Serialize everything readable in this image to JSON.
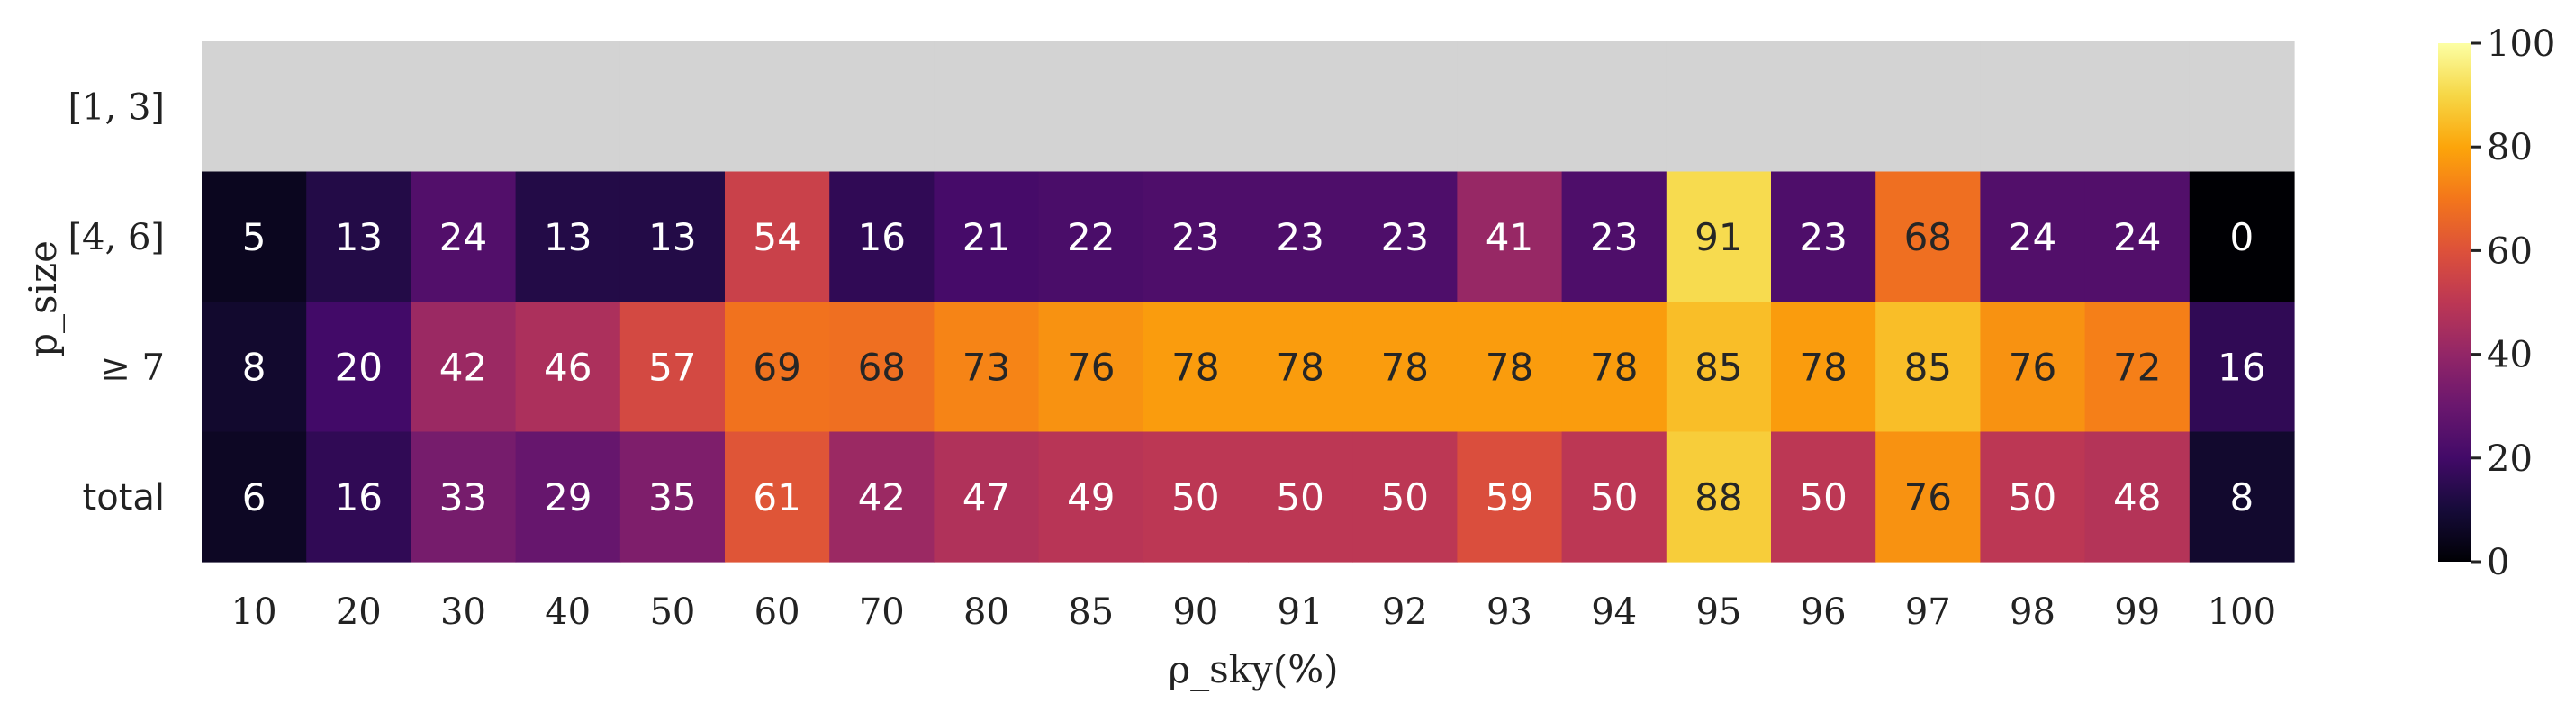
{
  "chart_data": {
    "type": "heatmap",
    "title": "",
    "xlabel": "ρ_sky(%)",
    "ylabel": "p_size",
    "x_categories": [
      "10",
      "20",
      "30",
      "40",
      "50",
      "60",
      "70",
      "80",
      "85",
      "90",
      "91",
      "92",
      "93",
      "94",
      "95",
      "96",
      "97",
      "98",
      "99",
      "100"
    ],
    "y_categories": [
      "[1, 3]",
      "[4, 6]",
      "≥ 7",
      "total"
    ],
    "values": [
      [
        null,
        null,
        null,
        null,
        null,
        null,
        null,
        null,
        null,
        null,
        null,
        null,
        null,
        null,
        null,
        null,
        null,
        null,
        null,
        null
      ],
      [
        5,
        13,
        24,
        13,
        13,
        54,
        16,
        21,
        22,
        23,
        23,
        23,
        41,
        23,
        91,
        23,
        68,
        24,
        24,
        0
      ],
      [
        8,
        20,
        42,
        46,
        57,
        69,
        68,
        73,
        76,
        78,
        78,
        78,
        78,
        78,
        85,
        78,
        85,
        76,
        72,
        16
      ],
      [
        6,
        16,
        33,
        29,
        35,
        61,
        42,
        47,
        49,
        50,
        50,
        50,
        59,
        50,
        88,
        50,
        76,
        50,
        48,
        8
      ]
    ],
    "missing_color": "#d3d3d3",
    "colormap": "inferno",
    "colorbar": {
      "range": [
        0,
        100
      ],
      "ticks": [
        "0",
        "20",
        "40",
        "60",
        "80",
        "100"
      ]
    },
    "grid": false
  }
}
